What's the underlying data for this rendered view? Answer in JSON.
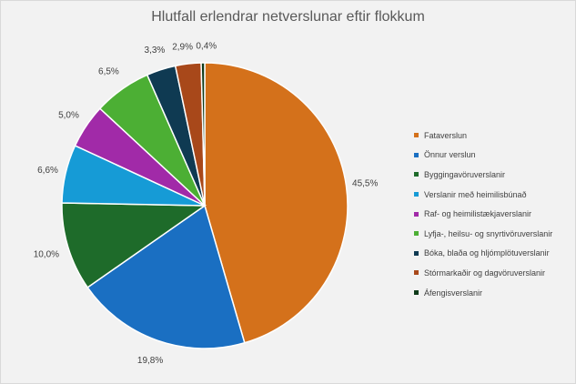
{
  "chart_data": {
    "type": "pie",
    "title": "Hlutfall erlendrar netverslunar eftir flokkum",
    "categories": [
      "Fataverslun",
      "Önnur verslun",
      "Byggingavöruverslanir",
      "Verslanir með heimilisbúnað",
      "Raf- og heimilistækjaverslanir",
      "Lyfja-, heilsu- og snyrtivöruverslanir",
      "Bóka, blaða og hljómplötuverslanir",
      "Stórmarkaðir og dagvöruverslanir",
      "Áfengisverslanir"
    ],
    "values": [
      45.5,
      19.8,
      10.0,
      6.6,
      5.0,
      6.5,
      3.3,
      2.9,
      0.4
    ],
    "labels": [
      "45,5%",
      "19,8%",
      "10,0%",
      "6,6%",
      "5,0%",
      "6,5%",
      "3,3%",
      "2,9%",
      "0,4%"
    ],
    "colors": [
      "#d4711b",
      "#1a6fc2",
      "#1e6b2a",
      "#169bd6",
      "#a12aa8",
      "#4caf34",
      "#0f3a52",
      "#a8481a",
      "#0f3b1a"
    ],
    "legend_position": "right"
  }
}
